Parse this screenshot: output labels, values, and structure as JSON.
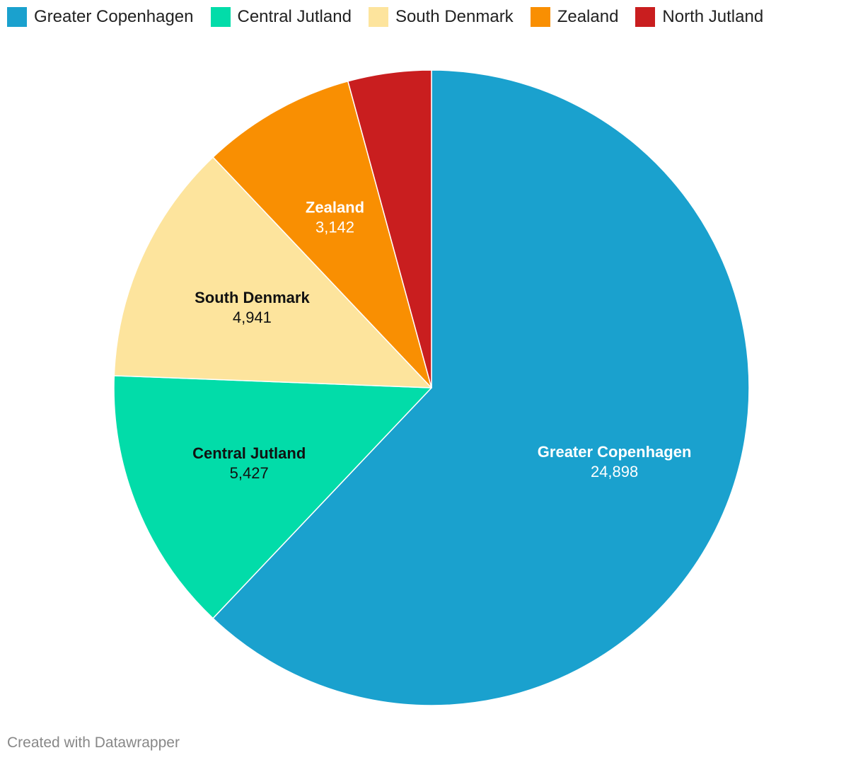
{
  "chart_data": {
    "type": "pie",
    "categories": [
      "Greater Copenhagen",
      "Central Jutland",
      "South Denmark",
      "Zealand",
      "North Jutland"
    ],
    "values": [
      24898,
      5427,
      4941,
      3142,
      1700
    ],
    "value_labels": [
      "24,898",
      "5,427",
      "4,941",
      "3,142",
      ""
    ],
    "colors": [
      "#1aa1ce",
      "#02dca9",
      "#fde49d",
      "#f98f02",
      "#c91e1f"
    ],
    "label_colors": [
      "#ffffff",
      "#111111",
      "#111111",
      "#ffffff",
      "#ffffff"
    ],
    "show_label": [
      true,
      true,
      true,
      true,
      false
    ],
    "legend_position": "top-left",
    "start": "top",
    "direction": "clockwise"
  },
  "footer": {
    "credit": "Created with Datawrapper"
  }
}
